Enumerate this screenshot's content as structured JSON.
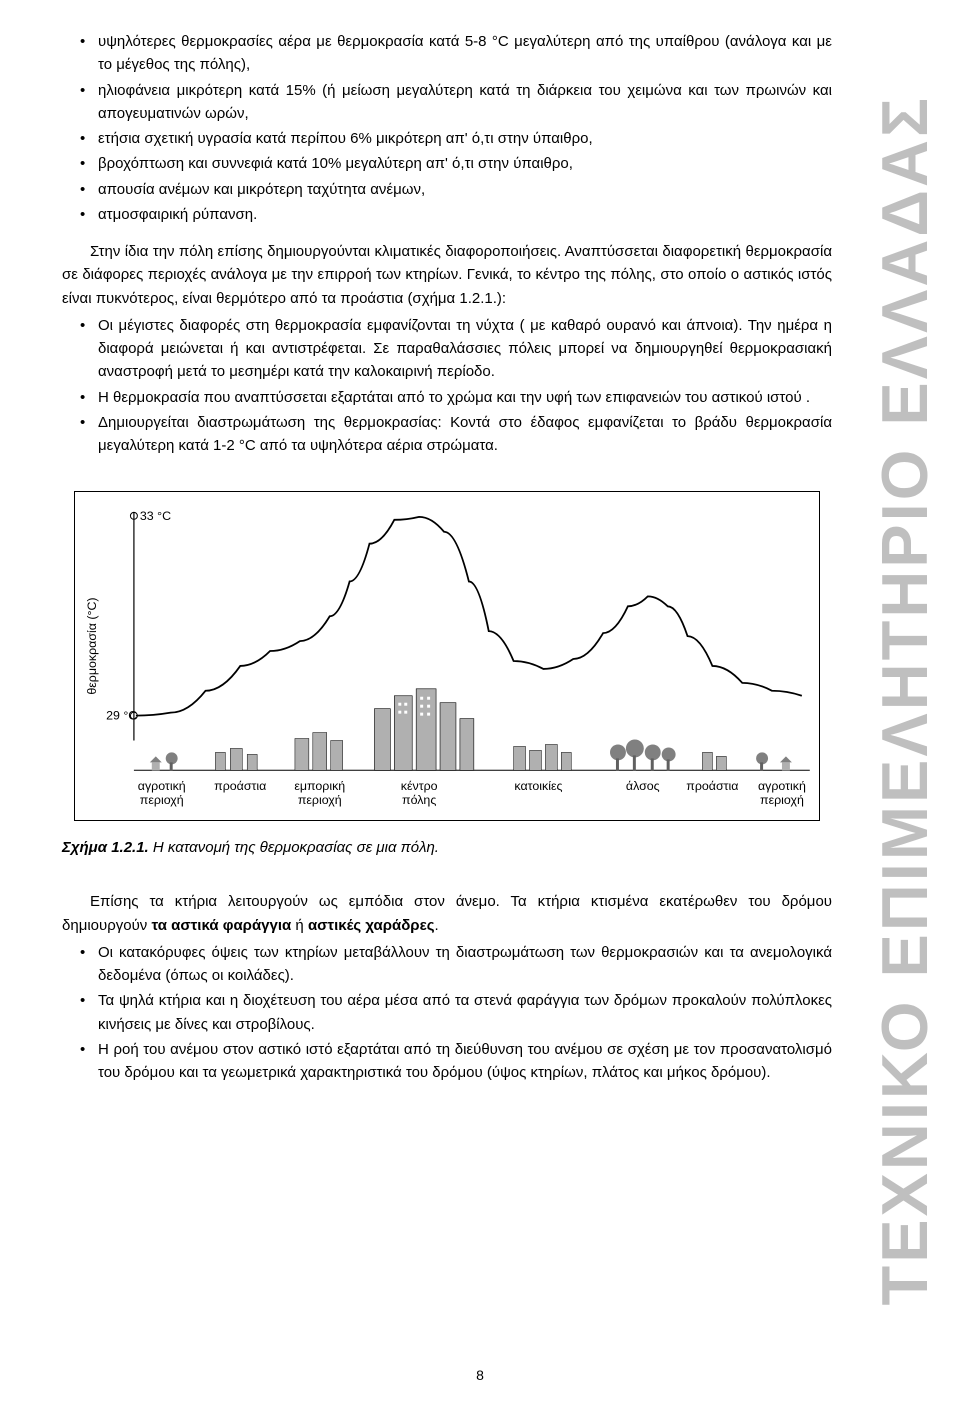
{
  "sidebar_title": "ΤΕΧΝΙΚΟ ΕΠΙΜΕΛΗΤΗΡΙΟ ΕΛΛΑΔΑΣ",
  "bullets1": [
    "υψηλότερες θερμοκρασίες αέρα με θερμοκρασία κατά 5-8 °C μεγαλύτερη από της υπαίθρου (ανάλογα και με το μέγεθος της πόλης),",
    "ηλιοφάνεια μικρότερη κατά 15% (ή μείωση μεγαλύτερη κατά τη διάρκεια του χειμώνα και των πρωινών και απογευματινών ωρών,",
    "ετήσια σχετική υγρασία κατά περίπου 6% μικρότερη απ' ό,τι στην ύπαιθρο,",
    "βροχόπτωση και συννεφιά κατά 10% μεγαλύτερη απ' ό,τι στην ύπαιθρο,",
    "απουσία ανέμων και μικρότερη ταχύτητα ανέμων,",
    "ατμοσφαιρική ρύπανση."
  ],
  "para1": "Στην ίδια την πόλη επίσης δημιουργούνται κλιματικές διαφοροποιήσεις. Αναπτύσσεται διαφορετική θερμοκρασία σε διάφορες περιοχές ανάλογα με την επιρροή των κτηρίων. Γενικά, το κέντρο της πόλης, στο οποίο ο αστικός ιστός είναι πυκνότερος, είναι θερμότερο από τα προάστια (σχήμα 1.2.1.):",
  "bullets2": [
    "Οι μέγιστες διαφορές στη θερμοκρασία εμφανίζονται τη νύχτα ( με καθαρό ουρανό και άπνοια). Την ημέρα η διαφορά μειώνεται ή και αντιστρέφεται. Σε παραθαλάσσιες πόλεις μπορεί να δημιουργηθεί θερμοκρασιακή αναστροφή μετά το μεσημέρι  κατά την καλοκαιρινή περίοδο.",
    "Η θερμοκρασία που αναπτύσσεται εξαρτάται από το χρώμα και την υφή των επιφανειών του αστικού ιστού .",
    "Δημιουργείται διαστρωμάτωση της θερμοκρασίας: Κοντά στο έδαφος εμφανίζεται το βράδυ θερμοκρασία μεγαλύτερη κατά 1-2 °C από τα υψηλότερα αέρια στρώματα."
  ],
  "figure": {
    "caption_num": "Σχήμα 1.2.1.",
    "caption_text": "  Η κατανομή της θερμοκρασίας σε μια πόλη.",
    "y_axis_label": "θερμοκρασία (°C)",
    "ytick_top": "33 °C",
    "ytick_bottom": "29 °C",
    "x_categories": [
      "αγροτική περιοχή",
      "προάστια",
      "εμπορική περιοχή",
      "κέντρο πόλης",
      "κατοικίες",
      "άλσος",
      "προάστια",
      "αγροτική περιοχή"
    ],
    "curve_points": [
      [
        60,
        225
      ],
      [
        95,
        222
      ],
      [
        130,
        200
      ],
      [
        165,
        175
      ],
      [
        195,
        160
      ],
      [
        225,
        150
      ],
      [
        255,
        125
      ],
      [
        275,
        90
      ],
      [
        295,
        52
      ],
      [
        320,
        28
      ],
      [
        345,
        25
      ],
      [
        370,
        40
      ],
      [
        395,
        90
      ],
      [
        415,
        140
      ],
      [
        440,
        170
      ],
      [
        470,
        178
      ],
      [
        500,
        168
      ],
      [
        530,
        142
      ],
      [
        555,
        115
      ],
      [
        575,
        105
      ],
      [
        595,
        115
      ],
      [
        615,
        145
      ],
      [
        640,
        175
      ],
      [
        670,
        192
      ],
      [
        700,
        200
      ],
      [
        730,
        205
      ]
    ],
    "colors": {
      "line": "#000000",
      "building_fill": "#b0b0b0",
      "tree_fill": "#808080"
    }
  },
  "para2_a": "Επίσης τα κτήρια λειτουργούν ως εμπόδια στον άνεμο. Τα κτήρια κτισμένα εκατέρωθεν του δρόμου δημιουργούν ",
  "para2_b": "τα αστικά φαράγγια",
  "para2_c": " ή ",
  "para2_d": "αστικές χαράδρες",
  "para2_e": ".",
  "bullets3": [
    "Οι κατακόρυφες όψεις των κτηρίων μεταβάλλουν τη διαστρωμάτωση των θερμοκρασιών και τα ανεμολογικά δεδομένα (όπως οι κοιλάδες).",
    "Τα ψηλά κτήρια και η διοχέτευση του αέρα μέσα από τα στενά φαράγγια των δρόμων προκαλούν πολύπλοκες κινήσεις με δίνες και στροβίλους.",
    "Η  ροή του ανέμου στον αστικό ιστό εξαρτάται από τη διεύθυνση του ανέμου σε σχέση με τον προσανατολισμό του δρόμου και τα γεωμετρικά χαρακτηριστικά του δρόμου (ύψος κτηρίων, πλάτος και μήκος δρόμου)."
  ],
  "page_number": "8"
}
